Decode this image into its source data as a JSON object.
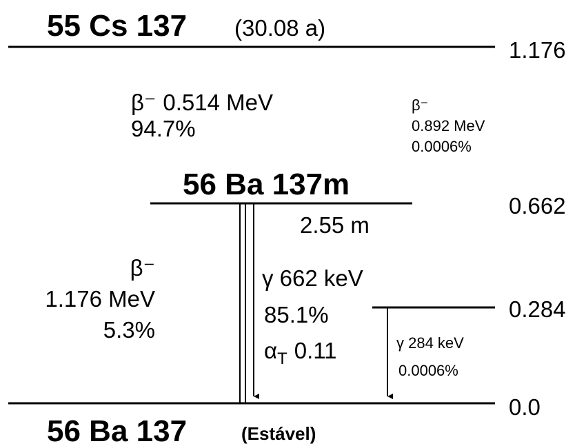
{
  "parent": {
    "label": "55 Cs 137",
    "half_life": "(30.08 a)",
    "energy": "1.176"
  },
  "beta_main": {
    "symbol": "β⁻",
    "energy": "0.514 MeV",
    "intensity": "94.7%"
  },
  "beta_rare": {
    "symbol": "β⁻",
    "energy": "0.892 MeV",
    "intensity": "0.0006%"
  },
  "metastable": {
    "label": "56 Ba 137m",
    "energy": "0.662",
    "half_life": "2.55 m"
  },
  "beta_ground": {
    "symbol": "β⁻",
    "energy": "1.176 MeV",
    "intensity": "5.3%"
  },
  "gamma_662": {
    "label": "γ 662 keV",
    "intensity": "85.1%",
    "alpha_symbol": "α",
    "alpha_subscript": "T",
    "alpha_value": "0.11"
  },
  "level_284": {
    "energy": "0.284"
  },
  "gamma_284": {
    "label": "γ 284 keV",
    "intensity": "0.0006%"
  },
  "ground": {
    "label": "56 Ba 137",
    "note": "(Estável)",
    "energy": "0.0"
  }
}
